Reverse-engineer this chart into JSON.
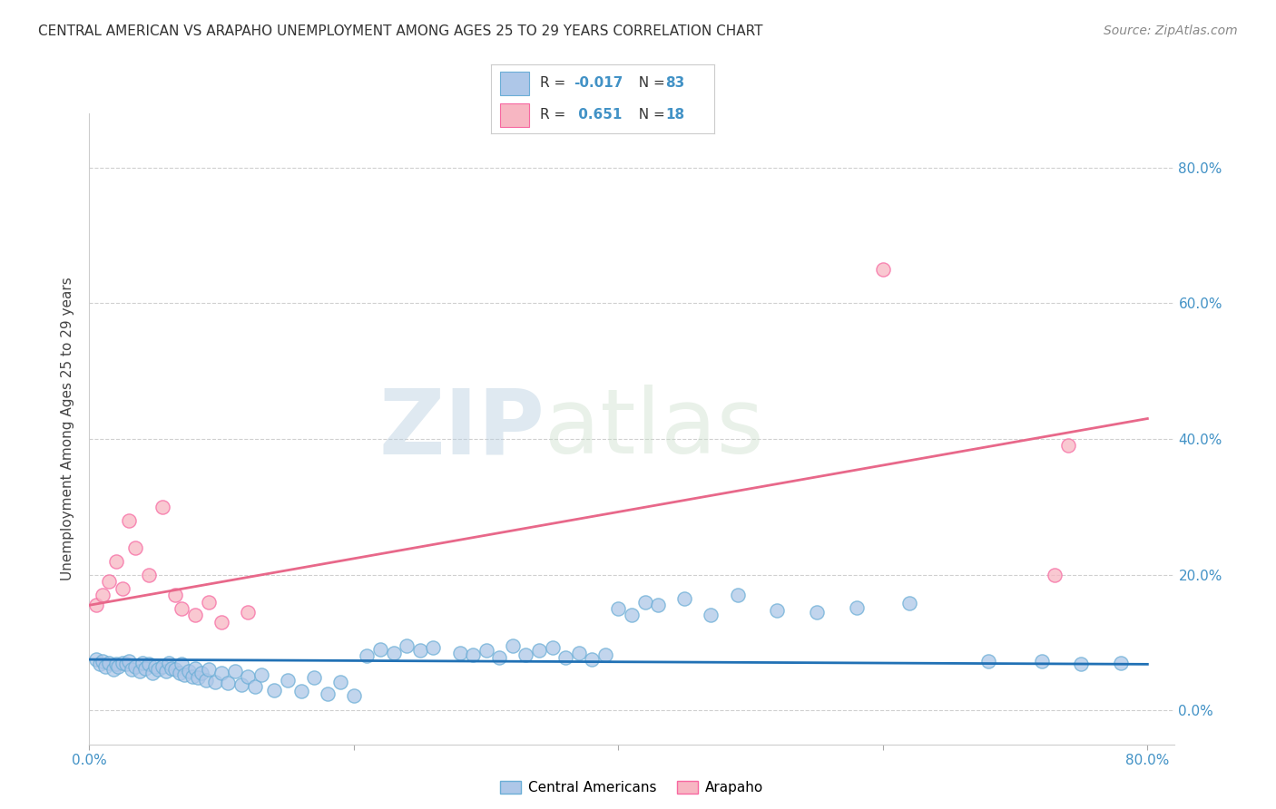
{
  "title": "CENTRAL AMERICAN VS ARAPAHO UNEMPLOYMENT AMONG AGES 25 TO 29 YEARS CORRELATION CHART",
  "source": "Source: ZipAtlas.com",
  "ylabel": "Unemployment Among Ages 25 to 29 years",
  "xlim": [
    0.0,
    0.82
  ],
  "ylim": [
    -0.05,
    0.88
  ],
  "yticks": [
    0.0,
    0.2,
    0.4,
    0.6,
    0.8
  ],
  "ytick_labels": [
    "0.0%",
    "20.0%",
    "40.0%",
    "60.0%",
    "80.0%"
  ],
  "xtick_vals": [
    0.0,
    0.2,
    0.4,
    0.6,
    0.8
  ],
  "legend_label1": "Central Americans",
  "legend_label2": "Arapaho",
  "R1": -0.017,
  "N1": 83,
  "R2": 0.651,
  "N2": 18,
  "color_blue_fill": "#aec7e8",
  "color_blue_edge": "#6baed6",
  "color_pink_fill": "#f7b6c2",
  "color_pink_edge": "#f768a1",
  "color_blue_text": "#4292c6",
  "color_line_blue": "#2171b5",
  "color_line_pink": "#e8688a",
  "blue_x": [
    0.005,
    0.008,
    0.01,
    0.012,
    0.015,
    0.018,
    0.02,
    0.022,
    0.025,
    0.028,
    0.03,
    0.032,
    0.035,
    0.038,
    0.04,
    0.042,
    0.045,
    0.048,
    0.05,
    0.052,
    0.055,
    0.058,
    0.06,
    0.062,
    0.065,
    0.068,
    0.07,
    0.072,
    0.075,
    0.078,
    0.08,
    0.082,
    0.085,
    0.088,
    0.09,
    0.095,
    0.1,
    0.105,
    0.11,
    0.115,
    0.12,
    0.125,
    0.13,
    0.14,
    0.15,
    0.16,
    0.17,
    0.18,
    0.19,
    0.2,
    0.21,
    0.22,
    0.23,
    0.24,
    0.25,
    0.26,
    0.28,
    0.29,
    0.3,
    0.31,
    0.32,
    0.33,
    0.34,
    0.35,
    0.36,
    0.37,
    0.38,
    0.39,
    0.4,
    0.41,
    0.42,
    0.43,
    0.45,
    0.47,
    0.49,
    0.52,
    0.55,
    0.58,
    0.62,
    0.68,
    0.72,
    0.75,
    0.78
  ],
  "blue_y": [
    0.075,
    0.068,
    0.072,
    0.065,
    0.07,
    0.06,
    0.068,
    0.065,
    0.07,
    0.068,
    0.072,
    0.06,
    0.065,
    0.058,
    0.07,
    0.062,
    0.068,
    0.055,
    0.065,
    0.06,
    0.065,
    0.058,
    0.07,
    0.062,
    0.06,
    0.055,
    0.068,
    0.052,
    0.058,
    0.05,
    0.062,
    0.048,
    0.055,
    0.045,
    0.06,
    0.042,
    0.055,
    0.04,
    0.058,
    0.038,
    0.05,
    0.035,
    0.052,
    0.03,
    0.045,
    0.028,
    0.048,
    0.025,
    0.042,
    0.022,
    0.08,
    0.09,
    0.085,
    0.095,
    0.088,
    0.092,
    0.085,
    0.082,
    0.088,
    0.078,
    0.095,
    0.082,
    0.088,
    0.092,
    0.078,
    0.085,
    0.075,
    0.082,
    0.15,
    0.14,
    0.16,
    0.155,
    0.165,
    0.14,
    0.17,
    0.148,
    0.145,
    0.152,
    0.158,
    0.072,
    0.072,
    0.068,
    0.07
  ],
  "pink_x": [
    0.005,
    0.01,
    0.015,
    0.02,
    0.025,
    0.03,
    0.035,
    0.045,
    0.055,
    0.065,
    0.07,
    0.08,
    0.09,
    0.1,
    0.12,
    0.6,
    0.73,
    0.74
  ],
  "pink_y": [
    0.155,
    0.17,
    0.19,
    0.22,
    0.18,
    0.28,
    0.24,
    0.2,
    0.3,
    0.17,
    0.15,
    0.14,
    0.16,
    0.13,
    0.145,
    0.65,
    0.2,
    0.39
  ],
  "blue_trend_x0": 0.0,
  "blue_trend_x1": 0.8,
  "blue_trend_y0": 0.075,
  "blue_trend_y1": 0.068,
  "pink_trend_x0": 0.0,
  "pink_trend_x1": 0.8,
  "pink_trend_y0": 0.155,
  "pink_trend_y1": 0.43,
  "watermark_zip": "ZIP",
  "watermark_atlas": "atlas",
  "background_color": "#ffffff",
  "grid_color": "#d0d0d0",
  "title_fontsize": 11,
  "tick_fontsize": 11,
  "ylabel_fontsize": 11
}
